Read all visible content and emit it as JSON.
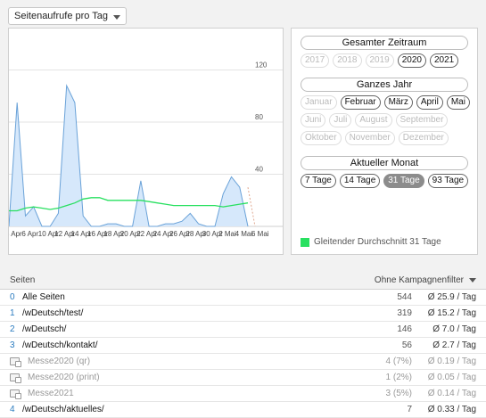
{
  "dropdown": {
    "label": "Seitenaufrufe pro Tag"
  },
  "chart_data": {
    "type": "area",
    "yticks": [
      40,
      80,
      120
    ],
    "ylim": [
      0,
      145
    ],
    "xticks": [
      "3 Apr",
      "6 Apr",
      "10 Apr",
      "12 Apr",
      "14 Apr",
      "16 Apr",
      "18 Apr",
      "20 Apr",
      "22 Apr",
      "24 Apr",
      "26 Apr",
      "28 Apr",
      "30 Apr",
      "2 Mai",
      "4 Mai",
      "6 Mai"
    ],
    "series": [
      {
        "values": [
          0,
          95,
          8,
          15,
          0,
          0,
          10,
          108,
          95,
          8,
          0,
          0,
          2,
          2,
          0,
          0,
          35,
          0,
          0,
          2,
          2,
          4,
          10,
          2,
          0,
          0,
          25,
          38,
          30,
          0
        ]
      },
      {
        "values": [
          12,
          12,
          14,
          15,
          14,
          13,
          14,
          16,
          18,
          21,
          22,
          22,
          20,
          20,
          20,
          20,
          20,
          19,
          18,
          17,
          16,
          16,
          16,
          16,
          16,
          16,
          15,
          16,
          17,
          18
        ]
      }
    ]
  },
  "sidebar": {
    "gesamt": {
      "title": "Gesamter Zeitraum",
      "years": [
        {
          "label": "2017",
          "state": "off"
        },
        {
          "label": "2018",
          "state": "off"
        },
        {
          "label": "2019",
          "state": "off"
        },
        {
          "label": "2020",
          "state": "on"
        },
        {
          "label": "2021",
          "state": "on"
        }
      ]
    },
    "jahr": {
      "title": "Ganzes Jahr",
      "rows": [
        [
          {
            "label": "Januar",
            "state": "off"
          },
          {
            "label": "Februar",
            "state": "on"
          },
          {
            "label": "März",
            "state": "on"
          },
          {
            "label": "April",
            "state": "on"
          },
          {
            "label": "Mai",
            "state": "on"
          }
        ],
        [
          {
            "label": "Juni",
            "state": "off"
          },
          {
            "label": "Juli",
            "state": "off"
          },
          {
            "label": "August",
            "state": "off"
          },
          {
            "label": "September",
            "state": "off"
          }
        ],
        [
          {
            "label": "Oktober",
            "state": "off"
          },
          {
            "label": "November",
            "state": "off"
          },
          {
            "label": "Dezember",
            "state": "off"
          }
        ]
      ]
    },
    "monat": {
      "title": "Aktueller Monat",
      "ranges": [
        {
          "label": "7 Tage",
          "state": "on"
        },
        {
          "label": "14 Tage",
          "state": "on"
        },
        {
          "label": "31 Tage",
          "state": "sel"
        },
        {
          "label": "93 Tage",
          "state": "on"
        }
      ]
    },
    "legend": "Gleitender Durchschnitt 31 Tage",
    "legend_color": "#28e060"
  },
  "table": {
    "header_left": "Seiten",
    "header_right": "Ohne Kampagnenfilter",
    "rows": [
      {
        "idx": "0",
        "name": "Alle Seiten",
        "count": "544",
        "avg": "Ø 25.9 / Tag",
        "sub": false
      },
      {
        "idx": "1",
        "name": "/wDeutsch/test/",
        "count": "319",
        "avg": "Ø 15.2 / Tag",
        "sub": false
      },
      {
        "idx": "2",
        "name": "/wDeutsch/",
        "count": "146",
        "avg": "Ø 7.0 / Tag",
        "sub": false
      },
      {
        "idx": "3",
        "name": "/wDeutsch/kontakt/",
        "count": "56",
        "avg": "Ø 2.7 / Tag",
        "sub": false
      },
      {
        "idx": "",
        "name": "Messe2020 (qr)",
        "count": "4 (7%)",
        "avg": "Ø 0.19 / Tag",
        "sub": true
      },
      {
        "idx": "",
        "name": "Messe2020 (print)",
        "count": "1 (2%)",
        "avg": "Ø 0.05 / Tag",
        "sub": true
      },
      {
        "idx": "",
        "name": "Messe2021",
        "count": "3 (5%)",
        "avg": "Ø 0.14 / Tag",
        "sub": true
      },
      {
        "idx": "4",
        "name": "/wDeutsch/aktuelles/",
        "count": "7",
        "avg": "Ø 0.33 / Tag",
        "sub": false
      }
    ]
  }
}
